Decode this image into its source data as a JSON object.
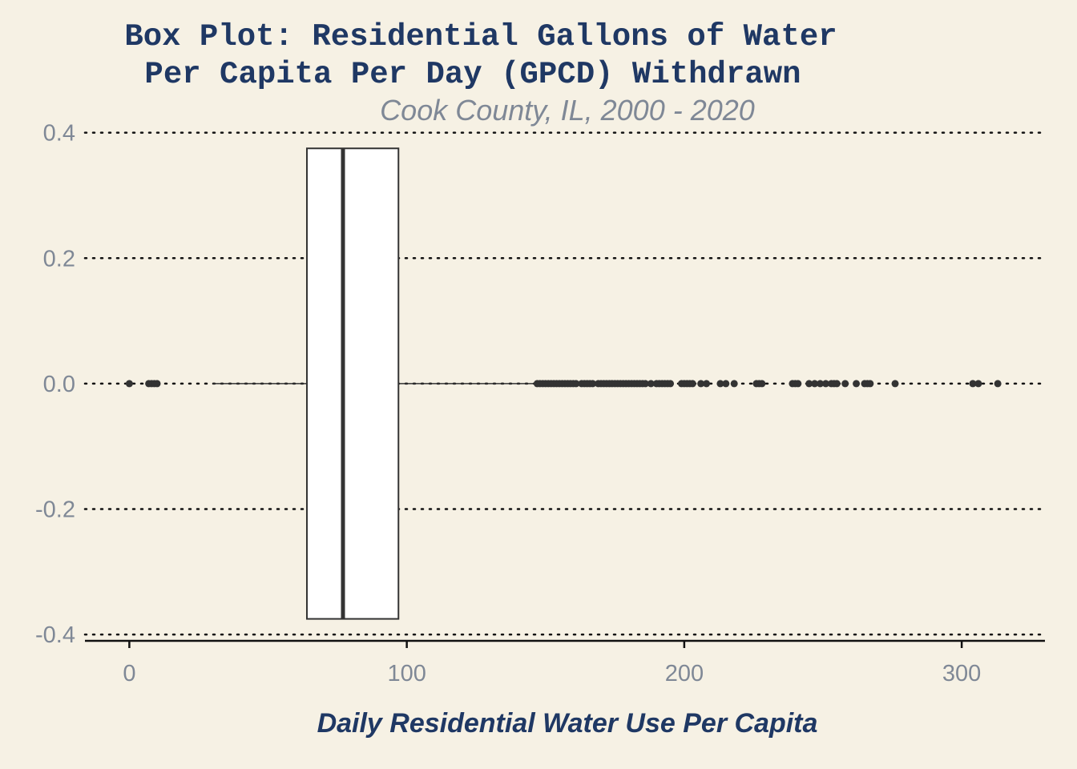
{
  "chart_data": {
    "type": "boxplot",
    "title": [
      "Box Plot: Residential Gallons of Water",
      "Per Capita Per Day (GPCD) Withdrawn"
    ],
    "subtitle": "Cook County, IL, 2000 - 2020",
    "xlabel": "Daily Residential Water Use Per Capita",
    "ylabel": "",
    "xlim": [
      -16,
      330
    ],
    "ylim": [
      -0.41,
      0.42
    ],
    "x_ticks": [
      0,
      100,
      200,
      300
    ],
    "x_tick_labels": [
      "0",
      "100",
      "200",
      "300"
    ],
    "y_ticks": [
      0.4,
      0.2,
      0.0,
      -0.2,
      -0.4
    ],
    "y_tick_labels": [
      "0.4",
      "0.2",
      "0.0",
      "-0.2",
      "-0.4"
    ],
    "grid": "horizontal dotted",
    "box": {
      "whisker_low": 30,
      "q1": 64,
      "median": 77,
      "q3": 97,
      "whisker_high": 146,
      "y_center": 0.0,
      "half_width": 0.375
    },
    "outliers": [
      0,
      7,
      8,
      9,
      10,
      147,
      148,
      149,
      150,
      151,
      152,
      153,
      154,
      155,
      156,
      157,
      158,
      159,
      160,
      161,
      163,
      164,
      165,
      166,
      167,
      169,
      170,
      171,
      172,
      173,
      174,
      175,
      176,
      177,
      178,
      179,
      180,
      181,
      182,
      183,
      184,
      185,
      186,
      188,
      190,
      191,
      192,
      193,
      194,
      195,
      199,
      200,
      201,
      202,
      203,
      206,
      208,
      213,
      215,
      218,
      226,
      227,
      228,
      239,
      240,
      241,
      245,
      247,
      249,
      251,
      253,
      254,
      255,
      258,
      262,
      265,
      266,
      267,
      276,
      304,
      306,
      313
    ]
  },
  "colors": {
    "background": "#F6F1E4",
    "title": "#1F3864",
    "subtitle": "#7F8896",
    "tick_label": "#7F8896",
    "box_fill": "#FFFFFF",
    "box_stroke": "#333333",
    "grid": "#111111",
    "point": "#333333"
  }
}
